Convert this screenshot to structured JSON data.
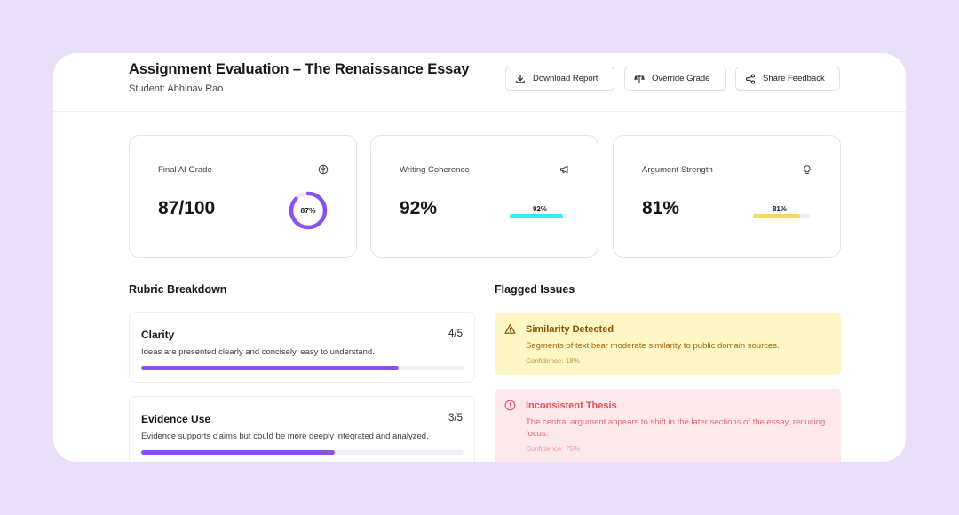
{
  "header": {
    "title": "Assignment Evaluation – The Renaissance Essay",
    "student": "Student: Abhinav Rao",
    "buttons": {
      "download": {
        "label": "Download Report",
        "icon": "download-icon"
      },
      "override": {
        "label": "Override Grade",
        "icon": "scale-icon"
      },
      "share": {
        "label": "Share Feedback",
        "icon": "share-icon"
      }
    }
  },
  "metrics": [
    {
      "label": "Final AI Grade",
      "value": "87/100",
      "badge": "87%",
      "fraction": 0.87,
      "icon": "brain-icon",
      "color": "#8653ee"
    },
    {
      "label": "Writing Coherence",
      "value": "92%",
      "badge": "92%",
      "fraction": 0.92,
      "icon": "megaphone-icon",
      "color": "#35e7f0"
    },
    {
      "label": "Argument Strength",
      "value": "81%",
      "badge": "81%",
      "fraction": 0.81,
      "icon": "lightbulb-icon",
      "color": "#fbd85c"
    }
  ],
  "rubric": {
    "title": "Rubric Breakdown",
    "items": [
      {
        "name": "Clarity",
        "score": "4/5",
        "description": "Ideas are presented clearly and concisely, easy to understand.",
        "fraction": 0.8
      },
      {
        "name": "Evidence Use",
        "score": "3/5",
        "description": "Evidence supports claims but could be more deeply integrated and analyzed.",
        "fraction": 0.6
      }
    ]
  },
  "flagged": {
    "title": "Flagged Issues",
    "items": [
      {
        "title": "Similarity Detected",
        "description": "Segments of text bear moderate similarity to public domain sources.",
        "confidence": "Confidence: 18%",
        "icon": "warning-triangle-icon",
        "color": "#fef6c4"
      },
      {
        "title": "Inconsistent Thesis",
        "description": "The central argument appears to shift in the later sections of the essay, reducing focus.",
        "confidence": "Confidence: 75%",
        "icon": "alert-circle-icon",
        "color": "#fde8eb"
      }
    ]
  }
}
